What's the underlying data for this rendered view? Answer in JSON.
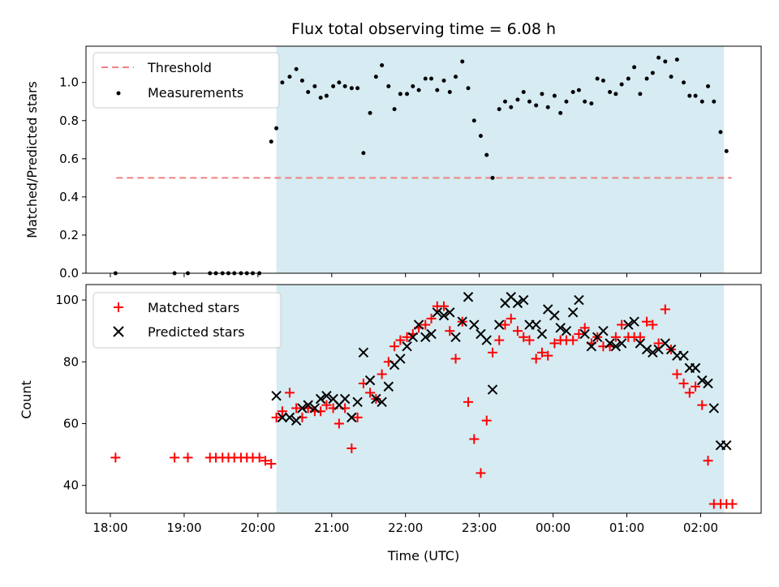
{
  "chart_data": {
    "type": "scatter",
    "title": "Flux total observing time = 6.08 h",
    "xlabel": "Time (UTC)",
    "x_unit": "hours since 18:00 UTC",
    "xlim": [
      17.67,
      26.82
    ],
    "shaded_interval": [
      "20:15",
      "26:19"
    ],
    "x_ticks": [
      {
        "hour": 18,
        "label": "18:00"
      },
      {
        "hour": 19,
        "label": "19:00"
      },
      {
        "hour": 20,
        "label": "20:00"
      },
      {
        "hour": 21,
        "label": "21:00"
      },
      {
        "hour": 22,
        "label": "22:00"
      },
      {
        "hour": 23,
        "label": "23:00"
      },
      {
        "hour": 24,
        "label": "00:00"
      },
      {
        "hour": 25,
        "label": "01:00"
      },
      {
        "hour": 26,
        "label": "02:00"
      }
    ],
    "top": {
      "ylabel": "Matched/Predicted stars",
      "ylim": [
        0,
        1.19
      ],
      "yticks": [
        "0.0",
        "0.2",
        "0.4",
        "0.6",
        "0.8",
        "1.0"
      ],
      "legend": {
        "position": "top-left",
        "threshold_label": "Threshold",
        "measurements_label": "Measurements"
      },
      "threshold": {
        "value": 0.5,
        "x_range": [
          18.08,
          26.42
        ],
        "color": "#f08080"
      },
      "measurements": {
        "color": "#000000",
        "x": [
          18.07,
          18.87,
          19.05,
          19.35,
          19.43,
          19.52,
          19.6,
          19.68,
          19.77,
          19.85,
          19.93,
          20.02,
          20.18,
          20.25,
          20.33,
          20.43,
          20.52,
          20.6,
          20.68,
          20.77,
          20.85,
          20.93,
          21.02,
          21.1,
          21.18,
          21.27,
          21.35,
          21.43,
          21.52,
          21.6,
          21.68,
          21.77,
          21.85,
          21.93,
          22.02,
          22.1,
          22.18,
          22.27,
          22.35,
          22.43,
          22.52,
          22.6,
          22.68,
          22.77,
          22.85,
          22.93,
          23.02,
          23.1,
          23.18,
          23.27,
          23.35,
          23.43,
          23.52,
          23.6,
          23.68,
          23.77,
          23.85,
          23.93,
          24.02,
          24.1,
          24.18,
          24.27,
          24.35,
          24.43,
          24.52,
          24.6,
          24.68,
          24.77,
          24.85,
          24.93,
          25.02,
          25.1,
          25.18,
          25.27,
          25.35,
          25.43,
          25.52,
          25.6,
          25.68,
          25.77,
          25.85,
          25.93,
          26.02,
          26.1,
          26.18,
          26.27,
          26.35
        ],
        "y": [
          0,
          0,
          0,
          0,
          0,
          0,
          0,
          0,
          0,
          0,
          0,
          0,
          0.69,
          0.76,
          1.0,
          1.03,
          1.07,
          1.01,
          0.95,
          0.98,
          0.92,
          0.93,
          0.98,
          1.0,
          0.98,
          0.97,
          0.97,
          0.63,
          0.84,
          1.03,
          1.09,
          0.98,
          0.86,
          0.94,
          0.94,
          0.98,
          0.96,
          1.02,
          1.02,
          0.96,
          1.01,
          0.95,
          1.03,
          1.11,
          0.97,
          0.8,
          0.72,
          0.62,
          0.5,
          0.86,
          0.9,
          0.87,
          0.91,
          0.95,
          0.9,
          0.88,
          0.94,
          0.87,
          0.93,
          0.84,
          0.9,
          0.95,
          0.96,
          0.9,
          0.89,
          1.02,
          1.01,
          0.95,
          0.94,
          0.99,
          1.02,
          1.08,
          0.94,
          1.02,
          1.05,
          1.13,
          1.11,
          1.03,
          1.12,
          1.0,
          0.93,
          0.93,
          0.9,
          0.98,
          0.9,
          0.74,
          0.64
        ]
      }
    },
    "bottom": {
      "ylabel": "Count",
      "ylim": [
        31,
        105
      ],
      "yticks": [
        "40",
        "60",
        "80",
        "100"
      ],
      "legend": {
        "position": "top-left",
        "matched_label": "Matched stars",
        "predicted_label": "Predicted stars"
      },
      "matched": {
        "color": "#ff0000",
        "marker": "+",
        "x": [
          18.07,
          18.87,
          19.05,
          19.35,
          19.43,
          19.52,
          19.6,
          19.68,
          19.77,
          19.85,
          19.93,
          20.02,
          20.1,
          20.18,
          20.25,
          20.33,
          20.43,
          20.52,
          20.6,
          20.68,
          20.77,
          20.85,
          20.93,
          21.02,
          21.1,
          21.18,
          21.27,
          21.35,
          21.43,
          21.52,
          21.6,
          21.68,
          21.77,
          21.85,
          21.93,
          22.02,
          22.1,
          22.18,
          22.27,
          22.35,
          22.43,
          22.52,
          22.6,
          22.68,
          22.77,
          22.85,
          22.93,
          23.02,
          23.1,
          23.18,
          23.27,
          23.35,
          23.43,
          23.52,
          23.6,
          23.68,
          23.77,
          23.85,
          23.93,
          24.02,
          24.1,
          24.18,
          24.27,
          24.35,
          24.43,
          24.52,
          24.6,
          24.68,
          24.77,
          24.85,
          24.93,
          25.02,
          25.1,
          25.18,
          25.27,
          25.35,
          25.43,
          25.52,
          25.6,
          25.68,
          25.77,
          25.85,
          25.93,
          26.02,
          26.1,
          26.18,
          26.27,
          26.35,
          26.43
        ],
        "y": [
          49,
          49,
          49,
          49,
          49,
          49,
          49,
          49,
          49,
          49,
          49,
          49,
          48,
          47,
          62,
          64,
          70,
          65,
          62,
          65,
          64,
          64,
          66,
          65,
          60,
          65,
          52,
          62,
          73,
          70,
          68,
          76,
          80,
          85,
          87,
          88,
          89,
          91,
          92,
          94,
          98,
          98,
          90,
          81,
          93,
          67,
          55,
          44,
          61,
          83,
          87,
          92,
          94,
          90,
          88,
          87,
          81,
          83,
          82,
          86,
          87,
          87,
          87,
          89,
          91,
          86,
          88,
          85,
          85,
          88,
          92,
          88,
          88,
          88,
          93,
          92,
          86,
          97,
          84,
          76,
          73,
          70,
          72,
          66,
          48,
          34,
          34,
          34,
          34
        ]
      },
      "predicted": {
        "color": "#000000",
        "marker": "x",
        "x": [
          20.25,
          20.33,
          20.43,
          20.52,
          20.6,
          20.68,
          20.77,
          20.85,
          20.93,
          21.02,
          21.1,
          21.18,
          21.27,
          21.35,
          21.43,
          21.52,
          21.6,
          21.68,
          21.77,
          21.85,
          21.93,
          22.02,
          22.1,
          22.18,
          22.27,
          22.35,
          22.43,
          22.52,
          22.6,
          22.68,
          22.77,
          22.85,
          22.93,
          23.02,
          23.1,
          23.18,
          23.27,
          23.35,
          23.43,
          23.52,
          23.6,
          23.68,
          23.77,
          23.85,
          23.93,
          24.02,
          24.1,
          24.18,
          24.27,
          24.35,
          24.43,
          24.52,
          24.6,
          24.68,
          24.77,
          24.85,
          24.93,
          25.02,
          25.1,
          25.18,
          25.27,
          25.35,
          25.43,
          25.52,
          25.6,
          25.68,
          25.77,
          25.85,
          25.93,
          26.02,
          26.1,
          26.18,
          26.27,
          26.35
        ],
        "y": [
          69,
          62,
          62,
          61,
          65,
          66,
          65,
          68,
          69,
          68,
          66,
          68,
          62,
          67,
          83,
          74,
          68,
          67,
          72,
          79,
          81,
          85,
          88,
          92,
          88,
          89,
          96,
          95,
          96,
          88,
          93,
          101,
          92,
          89,
          87,
          71,
          92,
          99,
          101,
          99,
          100,
          92,
          92,
          89,
          97,
          95,
          91,
          90,
          96,
          100,
          89,
          85,
          88,
          90,
          86,
          85,
          86,
          92,
          93,
          86,
          84,
          83,
          84,
          86,
          84,
          82,
          82,
          78,
          78,
          74,
          73,
          65,
          53,
          53
        ]
      }
    }
  }
}
